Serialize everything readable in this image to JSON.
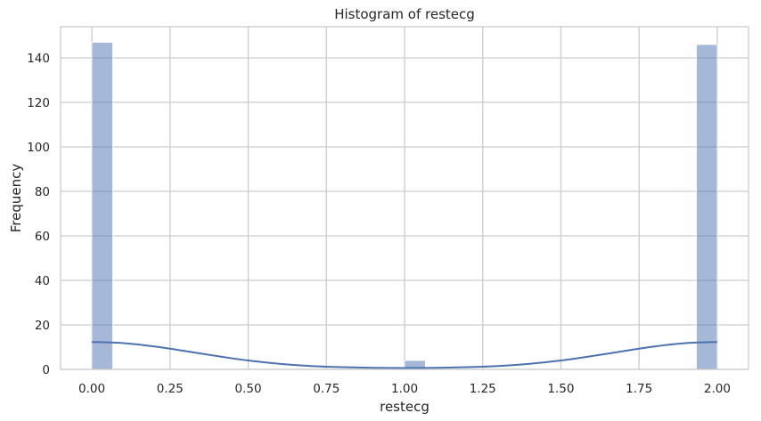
{
  "chart_data": {
    "type": "bar",
    "title": "Histogram of restecg",
    "xlabel": "restecg",
    "ylabel": "Frequency",
    "xlim": [
      -0.1,
      2.1
    ],
    "ylim": [
      0,
      154
    ],
    "xticks": [
      "0.00",
      "0.25",
      "0.50",
      "0.75",
      "1.00",
      "1.25",
      "1.50",
      "1.75",
      "2.00"
    ],
    "xtick_values": [
      0,
      0.25,
      0.5,
      0.75,
      1.0,
      1.25,
      1.5,
      1.75,
      2.0
    ],
    "yticks": [
      "0",
      "20",
      "40",
      "60",
      "80",
      "100",
      "120",
      "140"
    ],
    "ytick_values": [
      0,
      20,
      40,
      60,
      80,
      100,
      120,
      140
    ],
    "grid": true,
    "bins": [
      {
        "x0": 0.0,
        "x1": 0.0667,
        "count": 147
      },
      {
        "x0": 0.9333,
        "x1": 1.0,
        "count": 0
      },
      {
        "x0": 1.0,
        "x1": 1.0667,
        "count": 4
      },
      {
        "x0": 1.9333,
        "x1": 2.0,
        "count": 146
      }
    ],
    "kde": {
      "x": [
        0,
        0.1,
        0.2,
        0.3,
        0.4,
        0.5,
        0.6,
        0.7,
        0.8,
        0.9,
        1.0,
        1.1,
        1.2,
        1.3,
        1.4,
        1.5,
        1.6,
        1.7,
        1.8,
        1.9,
        2.0
      ],
      "y": [
        12.3,
        11.8,
        10.3,
        8.2,
        6.0,
        4.0,
        2.5,
        1.5,
        1.0,
        0.7,
        0.6,
        0.7,
        1.0,
        1.5,
        2.5,
        4.0,
        6.0,
        8.2,
        10.3,
        11.8,
        12.3
      ]
    },
    "colors": {
      "bar": "#4c72b0",
      "bar_opacity": 0.5,
      "kde": "#4c72b0",
      "grid": "#cccccc",
      "spine": "#cccccc"
    }
  }
}
